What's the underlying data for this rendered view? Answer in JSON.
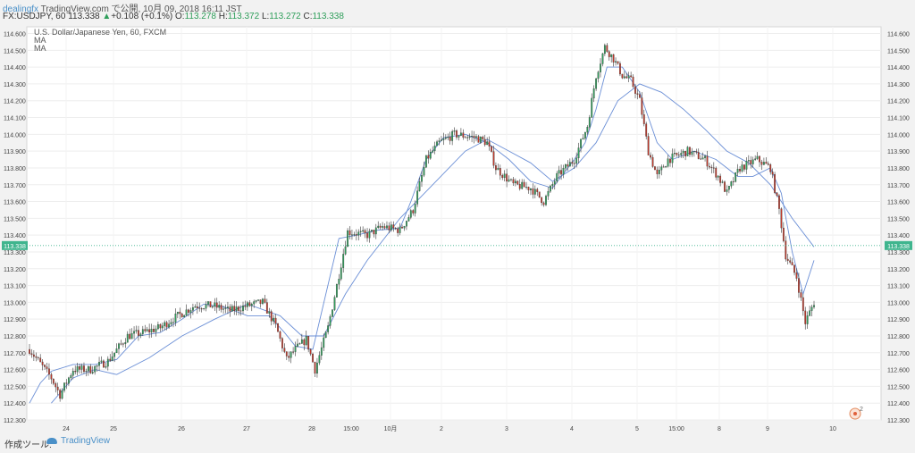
{
  "header": {
    "brand": "dealingfx",
    "brand_suffix": " TradingView.com で公開, 10月 09, 2018 16:11 JST",
    "symbol": "FX:USDJPY, 60",
    "last": "113.338",
    "change": "+0.108 (+0.1%)",
    "open_label": "O:",
    "open": "113.278",
    "high_label": "H:",
    "high": "113.372",
    "low_label": "L:",
    "low": "113.272",
    "close_label": "C:",
    "close": "113.338"
  },
  "legend": {
    "title": "U.S. Dollar/Japanese Yen, 60, FXCM",
    "ma1": "MA",
    "ma2": "MA"
  },
  "footer": {
    "tools": "作成ツール:",
    "tradingview": "TradingView"
  },
  "colors": {
    "up": "#2e9e5a",
    "down": "#c0392b",
    "ma": "#6b8fd6",
    "price_line": "#3fb58e",
    "axis_text": "#444444"
  },
  "chart_data": {
    "type": "candlestick",
    "symbol": "USD/JPY",
    "ylim": [
      112.3,
      114.64
    ],
    "y_ticks": [
      "114.600",
      "114.500",
      "114.400",
      "114.300",
      "114.200",
      "114.100",
      "114.000",
      "113.900",
      "113.800",
      "113.700",
      "113.600",
      "113.500",
      "113.400",
      "113.300",
      "113.200",
      "113.100",
      "113.000",
      "112.900",
      "112.800",
      "112.700",
      "112.600",
      "112.500",
      "112.400",
      "112.300"
    ],
    "x_ticks": [
      "24",
      "25",
      "26",
      "27",
      "28",
      "15:00",
      "10月",
      "2",
      "3",
      "4",
      "5",
      "15:00",
      "8",
      "9",
      "10"
    ],
    "last_price": "113.338",
    "ma_fast": [
      [
        0,
        112.4
      ],
      [
        5,
        112.52
      ],
      [
        10,
        112.59
      ],
      [
        20,
        112.63
      ],
      [
        30,
        112.63
      ],
      [
        40,
        112.66
      ],
      [
        50,
        112.8
      ],
      [
        60,
        112.82
      ],
      [
        70,
        112.9
      ],
      [
        80,
        112.99
      ],
      [
        90,
        112.97
      ],
      [
        100,
        112.92
      ],
      [
        110,
        112.92
      ],
      [
        117,
        112.82
      ],
      [
        122,
        112.74
      ],
      [
        130,
        112.72
      ],
      [
        136,
        113.05
      ],
      [
        142,
        113.38
      ],
      [
        150,
        113.4
      ],
      [
        160,
        113.43
      ],
      [
        170,
        113.44
      ],
      [
        175,
        113.6
      ],
      [
        182,
        113.85
      ],
      [
        190,
        113.98
      ],
      [
        200,
        114.0
      ],
      [
        210,
        113.95
      ],
      [
        220,
        113.85
      ],
      [
        230,
        113.72
      ],
      [
        240,
        113.68
      ],
      [
        250,
        113.85
      ],
      [
        255,
        113.95
      ],
      [
        260,
        114.15
      ],
      [
        265,
        114.4
      ],
      [
        272,
        114.4
      ],
      [
        280,
        114.25
      ],
      [
        288,
        113.95
      ],
      [
        295,
        113.85
      ],
      [
        305,
        113.9
      ],
      [
        315,
        113.85
      ],
      [
        325,
        113.75
      ],
      [
        332,
        113.75
      ],
      [
        340,
        113.8
      ],
      [
        345,
        113.65
      ],
      [
        350,
        113.3
      ],
      [
        355,
        113.05
      ],
      [
        360,
        113.25
      ]
    ],
    "ma_slow": [
      [
        10,
        112.4
      ],
      [
        20,
        112.55
      ],
      [
        30,
        112.6
      ],
      [
        40,
        112.57
      ],
      [
        55,
        112.67
      ],
      [
        70,
        112.8
      ],
      [
        85,
        112.9
      ],
      [
        100,
        112.99
      ],
      [
        115,
        112.92
      ],
      [
        125,
        112.8
      ],
      [
        135,
        112.8
      ],
      [
        145,
        113.05
      ],
      [
        155,
        113.25
      ],
      [
        170,
        113.5
      ],
      [
        185,
        113.7
      ],
      [
        200,
        113.9
      ],
      [
        210,
        113.97
      ],
      [
        220,
        113.9
      ],
      [
        230,
        113.83
      ],
      [
        240,
        113.72
      ],
      [
        250,
        113.8
      ],
      [
        260,
        113.95
      ],
      [
        270,
        114.2
      ],
      [
        280,
        114.3
      ],
      [
        290,
        114.25
      ],
      [
        300,
        114.15
      ],
      [
        310,
        114.03
      ],
      [
        320,
        113.9
      ],
      [
        330,
        113.83
      ],
      [
        340,
        113.7
      ],
      [
        350,
        113.5
      ],
      [
        360,
        113.33
      ]
    ]
  }
}
